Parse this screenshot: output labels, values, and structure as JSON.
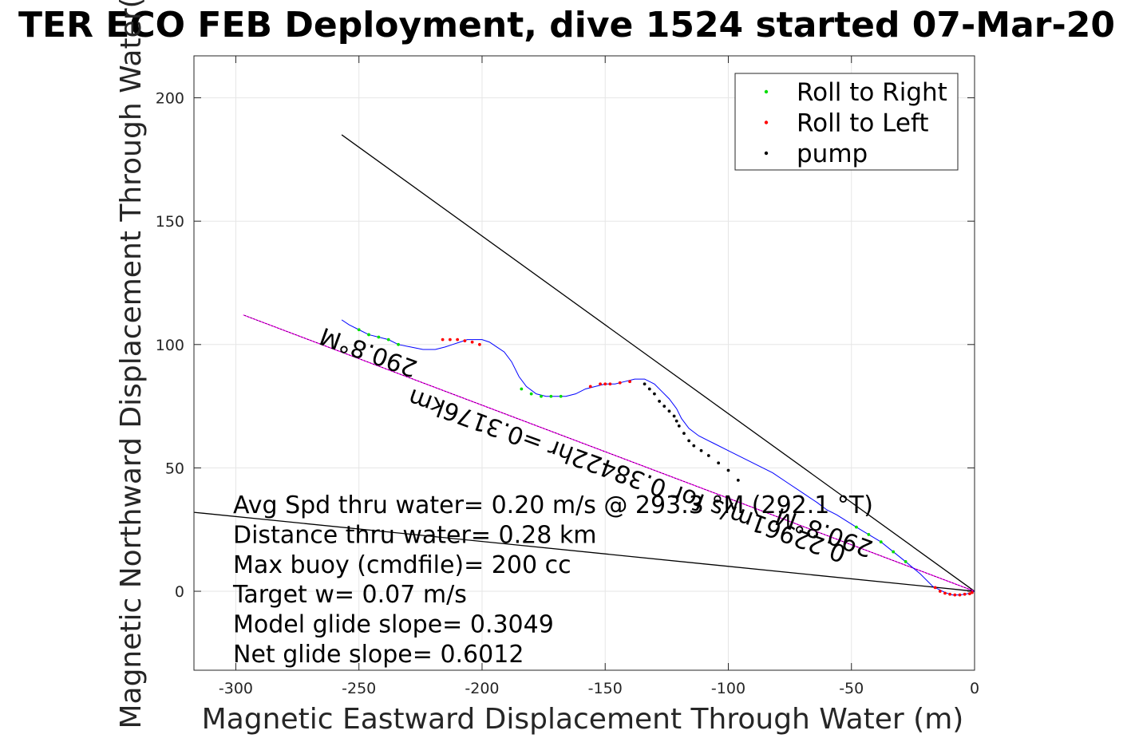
{
  "chart_data": {
    "type": "line",
    "title": "TER ECO FEB Deployment, dive 1524 started 07-Mar-20",
    "xlabel": "Magnetic Eastward Displacement Through Water (m)",
    "ylabel": "Magnetic Northward Displacement Through Water(",
    "xlim": [
      -317,
      0
    ],
    "ylim": [
      -32,
      217
    ],
    "xticks": [
      -300,
      -250,
      -200,
      -150,
      -100,
      -50,
      0
    ],
    "yticks": [
      0,
      50,
      100,
      150,
      200
    ],
    "grid": true,
    "legend": {
      "placement": "top-right",
      "entries": [
        {
          "label": "Roll to Right",
          "color": "#00dd00"
        },
        {
          "label": "Roll to Left",
          "color": "#ff0000"
        },
        {
          "label": "pump",
          "color": "#000000"
        }
      ]
    },
    "track": {
      "color": "#0000ff",
      "x": [
        0,
        -3,
        -6,
        -9,
        -12,
        -15,
        -17,
        -22,
        -28,
        -33,
        -38,
        -43,
        -48,
        -52,
        -56,
        -60,
        -64,
        -70,
        -76,
        -82,
        -88,
        -94,
        -100,
        -106,
        -112,
        -116,
        -119,
        -121,
        -124,
        -127,
        -130,
        -134,
        -138,
        -142,
        -146,
        -150,
        -154,
        -158,
        -162,
        -166,
        -170,
        -174,
        -178,
        -182,
        -185,
        -188,
        -191,
        -194,
        -197,
        -200,
        -203,
        -206,
        -209,
        -212,
        -215,
        -219,
        -224,
        -229,
        -234,
        -238,
        -242,
        -246,
        -250,
        -254,
        -257
      ],
      "y": [
        0,
        -1,
        -1.5,
        -1.5,
        -0.5,
        1,
        2,
        7,
        12,
        16,
        20,
        23,
        26,
        28.5,
        31,
        33,
        36,
        40,
        44,
        48,
        51,
        54,
        57,
        60,
        63,
        66,
        70,
        74,
        78,
        81,
        84,
        86,
        86,
        85,
        84,
        84,
        83,
        82,
        80,
        79,
        79,
        79,
        80,
        83,
        87,
        93,
        97,
        99,
        101,
        102,
        102,
        102,
        101,
        100,
        99,
        98,
        98,
        99,
        100,
        102,
        103,
        104,
        106,
        108,
        110
      ]
    },
    "roll_right": {
      "color": "#00dd00",
      "x": [
        -28,
        -33,
        -38,
        -43,
        -48,
        -168,
        -172,
        -176,
        -180,
        -184,
        -234,
        -238,
        -242,
        -246,
        -250
      ],
      "y": [
        12,
        16,
        20,
        23,
        26,
        79,
        79,
        79,
        80,
        82,
        100,
        102,
        103,
        104,
        106
      ]
    },
    "roll_left": {
      "color": "#ff0000",
      "x": [
        -1,
        -2,
        -4,
        -6,
        -8,
        -10,
        -12,
        -14,
        -16,
        -140,
        -144,
        -148,
        -150,
        -152,
        -156,
        -201,
        -204,
        -207,
        -210,
        -213,
        -216
      ],
      "y": [
        -0.5,
        -1,
        -1.2,
        -1.5,
        -1.5,
        -1.2,
        -0.8,
        0,
        1.5,
        85,
        84.5,
        84,
        84,
        84,
        83,
        100,
        101,
        101.5,
        102,
        102,
        102
      ]
    },
    "pump": {
      "color": "#000000",
      "x": [
        -96,
        -100,
        -104,
        -108,
        -111,
        -114,
        -116,
        -118,
        -120,
        -121,
        -122,
        -124,
        -126,
        -128,
        -130,
        -132,
        -134
      ],
      "y": [
        45,
        49,
        52,
        55,
        57,
        59,
        61,
        64,
        67,
        69,
        71,
        73,
        75,
        77,
        80,
        82,
        84
      ]
    },
    "fit_line": {
      "color": "#ff00ff",
      "x": [
        0,
        -297
      ],
      "y": [
        0,
        112
      ]
    },
    "ref_line_1": {
      "color": "#000000",
      "x": [
        0,
        -257
      ],
      "y": [
        0,
        185
      ]
    },
    "ref_line_2": {
      "color": "#000000",
      "x": [
        0,
        -317
      ],
      "y": [
        0,
        32
      ]
    },
    "annotations": [
      "Avg Spd thru water=  0.20 m/s @ 293.3 °M (292.1 °T)",
      "Distance thru water=  0.28 km",
      "Max buoy (cmdfile)= 200 cc",
      "Target w= 0.07 m/s",
      "Model glide slope= 0.3049",
      "Net glide slope= 0.6012"
    ],
    "rotated_labels": [
      {
        "text": "290.8°M",
        "x": -245,
        "y": 100,
        "angle": 200
      },
      {
        "text": "0.22961m/s for 0.38422hr =0.3176km",
        "x": -140,
        "y": 50,
        "angle": 200
      },
      {
        "text": "290.8°M",
        "x": -60,
        "y": 27,
        "angle": 200
      }
    ]
  }
}
